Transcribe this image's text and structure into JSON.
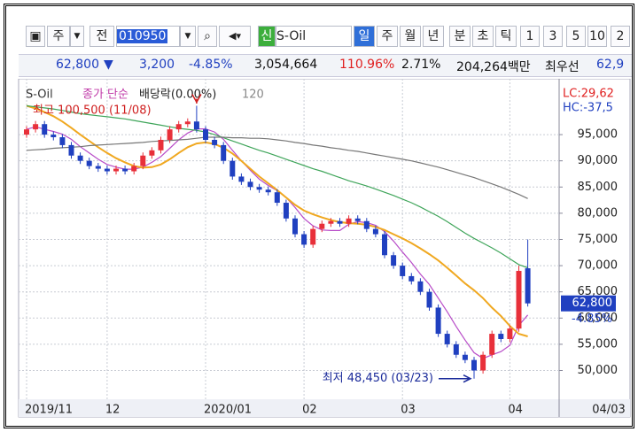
{
  "toolbar": {
    "period_toggle": "주",
    "prev": "전",
    "code": "010950",
    "badge": "신",
    "name": "S-Oil",
    "periods": [
      "일",
      "주",
      "월",
      "년",
      "분",
      "초",
      "틱"
    ],
    "intervals": [
      "1",
      "3",
      "5",
      "10",
      "2"
    ]
  },
  "quote": {
    "price": "62,800",
    "arrow": "▼",
    "change": "3,200",
    "rate": "-4.85%",
    "volume": "3,054,664",
    "volume_ratio": "110.96%",
    "turnover": "2.71%",
    "amount": "204,264백만",
    "best_label": "최우선",
    "best": "62,9"
  },
  "chart_data": {
    "type": "candlestick",
    "legend_text": [
      "S-Oil",
      "종가 단순",
      "배당락(0.00%)",
      "120"
    ],
    "limits": [
      "LC:29,62",
      "HC:-37,5"
    ],
    "annotations": [
      "최고 100,500 (11/08)",
      "최저 48,450 (03/23)"
    ],
    "price_tag": {
      "value": 62800,
      "label": "62,800"
    },
    "price_change": "-4.85%",
    "corner_label": "04/03",
    "categories": [
      "2019/11",
      null,
      null,
      null,
      null,
      null,
      null,
      null,
      null,
      "12",
      null,
      null,
      null,
      null,
      null,
      null,
      null,
      null,
      null,
      null,
      "2020/01",
      null,
      null,
      null,
      null,
      null,
      null,
      null,
      null,
      null,
      null,
      "02",
      null,
      null,
      null,
      null,
      null,
      null,
      null,
      null,
      null,
      null,
      "03",
      null,
      null,
      null,
      null,
      null,
      null,
      null,
      null,
      null,
      null,
      null,
      "04",
      null,
      null
    ],
    "open": [
      95000,
      96000,
      97000,
      95000,
      94500,
      93000,
      91000,
      90000,
      89000,
      88500,
      88000,
      88500,
      88000,
      89000,
      91000,
      92000,
      94000,
      96000,
      97000,
      97500,
      96000,
      94000,
      93000,
      90000,
      87000,
      86000,
      85000,
      84500,
      84000,
      82000,
      79000,
      76000,
      74000,
      77000,
      78000,
      78500,
      78000,
      79000,
      78500,
      77000,
      76000,
      72000,
      70000,
      68000,
      67000,
      65000,
      62000,
      57000,
      55000,
      53000,
      52000,
      50000,
      53000,
      57000,
      56000,
      58000,
      69500
    ],
    "high": [
      96600,
      97600,
      97600,
      95600,
      95100,
      93600,
      91600,
      90600,
      89600,
      89100,
      89100,
      89100,
      89600,
      91600,
      92600,
      94600,
      96600,
      97600,
      98100,
      100500,
      96600,
      94600,
      93600,
      90600,
      87600,
      86600,
      85600,
      85100,
      84600,
      82600,
      79600,
      76600,
      77600,
      78600,
      79100,
      79100,
      79600,
      79600,
      79100,
      77600,
      76600,
      72600,
      70600,
      68600,
      67600,
      65600,
      62600,
      57600,
      55600,
      53600,
      52600,
      53600,
      57600,
      57600,
      58600,
      70000,
      75000
    ],
    "low": [
      94400,
      95400,
      94400,
      93900,
      92400,
      90400,
      89400,
      88400,
      87900,
      87400,
      87400,
      87400,
      87400,
      88400,
      90400,
      91400,
      93400,
      95400,
      96400,
      95400,
      93400,
      92400,
      89400,
      86400,
      85400,
      84400,
      83900,
      83400,
      81400,
      78400,
      75400,
      73400,
      73400,
      76400,
      77400,
      77400,
      77400,
      77900,
      76400,
      75400,
      71400,
      69400,
      67400,
      66400,
      64400,
      61400,
      56400,
      54400,
      52400,
      51400,
      48450,
      49400,
      52400,
      55400,
      55400,
      57400,
      62200
    ],
    "close": [
      96000,
      97000,
      95000,
      94500,
      93000,
      91000,
      90000,
      89000,
      88500,
      88000,
      88500,
      88000,
      89000,
      91000,
      92000,
      94000,
      96000,
      97000,
      97500,
      96000,
      94000,
      93000,
      90000,
      87000,
      86000,
      85000,
      84500,
      84000,
      82000,
      79000,
      76000,
      74000,
      77000,
      78000,
      78500,
      78000,
      79000,
      78500,
      77000,
      76000,
      72000,
      70000,
      68000,
      67000,
      65000,
      62000,
      57000,
      55000,
      53000,
      52000,
      50000,
      53000,
      57000,
      56000,
      58000,
      69000,
      62800
    ],
    "up_color": "#e8303a",
    "down_color": "#2040c0",
    "series": [
      {
        "color": "#b84cc8",
        "values": [
          96000,
          96500,
          96000,
          95600,
          95100,
          94100,
          92700,
          91500,
          90300,
          89300,
          88800,
          88400,
          88400,
          88800,
          89700,
          90800,
          92400,
          94000,
          95300,
          96100,
          96100,
          95500,
          94100,
          92000,
          90000,
          88200,
          86500,
          85300,
          84300,
          83000,
          81100,
          79000,
          77600,
          76800,
          76700,
          76700,
          77900,
          78400,
          78200,
          77700,
          76500,
          74700,
          72600,
          70600,
          68400,
          66400,
          63800,
          61200,
          58400,
          55800,
          53400,
          52300,
          53000,
          53600,
          54800,
          58600,
          60600
        ]
      },
      {
        "color": "#f0a820",
        "values": [
          100500,
          100000,
          99300,
          98500,
          97500,
          96300,
          95000,
          93800,
          92600,
          91500,
          90500,
          89700,
          89000,
          88700,
          88800,
          89300,
          90300,
          91500,
          92600,
          93300,
          93500,
          93200,
          92500,
          91400,
          90000,
          88500,
          87000,
          85700,
          84400,
          83000,
          81600,
          80500,
          79800,
          79200,
          78700,
          78300,
          78100,
          78000,
          77800,
          77400,
          76800,
          76000,
          75200,
          74300,
          73300,
          72200,
          71000,
          69600,
          68100,
          66600,
          65300,
          63800,
          62000,
          60400,
          58500,
          57000,
          56500
        ]
      },
      {
        "color": "#3fa55a",
        "values": [
          100500,
          100300,
          100100,
          99900,
          99600,
          99300,
          99000,
          98800,
          98600,
          98400,
          98200,
          98000,
          97700,
          97400,
          97100,
          96800,
          96500,
          96200,
          96000,
          95800,
          95500,
          95000,
          94400,
          93800,
          93200,
          92600,
          92000,
          91500,
          90900,
          90300,
          89700,
          89100,
          88500,
          88000,
          87400,
          86800,
          86200,
          85700,
          85200,
          84600,
          84000,
          83400,
          82700,
          82000,
          81200,
          80300,
          79400,
          78400,
          77300,
          76200,
          75200,
          74300,
          73400,
          72400,
          71300,
          70200,
          69600
        ]
      },
      {
        "color": "#777777",
        "values": [
          92000,
          92100,
          92200,
          92400,
          92500,
          92600,
          92700,
          92900,
          93000,
          93100,
          93200,
          93300,
          93400,
          93500,
          93700,
          93800,
          93900,
          94000,
          94100,
          94300,
          94500,
          94500,
          94500,
          94400,
          94400,
          94300,
          94300,
          94200,
          94000,
          93800,
          93500,
          93300,
          93000,
          92800,
          92500,
          92300,
          92000,
          91800,
          91500,
          91200,
          90900,
          90600,
          90300,
          90000,
          89600,
          89200,
          88800,
          88300,
          87800,
          87300,
          86800,
          86200,
          85600,
          85000,
          84300,
          83600,
          82800
        ]
      }
    ],
    "ylim": [
      43500,
      104300
    ],
    "yticks": [
      {
        "value": 50000,
        "label": "50,000"
      },
      {
        "value": 55000,
        "label": "55,000"
      },
      {
        "value": 60000,
        "label": "60,000"
      },
      {
        "value": 65000,
        "label": "65,000"
      },
      {
        "value": 70000,
        "label": "70,000"
      },
      {
        "value": 75000,
        "label": "75,000"
      },
      {
        "value": 80000,
        "label": "80,000"
      },
      {
        "value": 85000,
        "label": "85,000"
      },
      {
        "value": 90000,
        "label": "90,000"
      },
      {
        "value": 95000,
        "label": "95,000"
      }
    ],
    "grid": true
  }
}
